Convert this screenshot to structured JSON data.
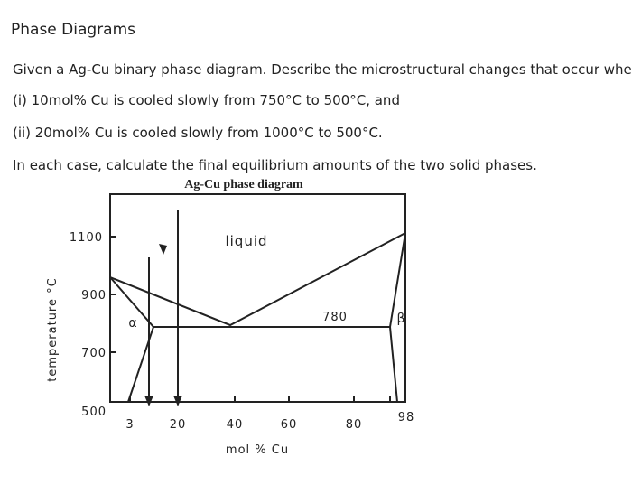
{
  "header": {
    "title": "Phase Diagrams"
  },
  "body": {
    "lines": [
      "Given a Ag-Cu binary phase diagram. Describe the microstructural changes that occur when",
      "(i) 10mol% Cu is cooled slowly from 750°C to 500°C, and",
      "(ii) 20mol% Cu is cooled slowly from 1000°C to 500°C.",
      "In each case, calculate the final equilibrium amounts of the two solid phases."
    ]
  },
  "diagram": {
    "title": "Ag-Cu phase diagram",
    "y_label": "temperature °C",
    "x_label": "mol % Cu",
    "y_ticks": [
      "1100",
      "900",
      "700",
      "500"
    ],
    "x_ticks": [
      "3",
      "20",
      "40",
      "60",
      "80",
      "98"
    ],
    "regions": {
      "liquid": "liquid",
      "alpha": "α",
      "beta": "β",
      "eutectic": "780"
    }
  }
}
